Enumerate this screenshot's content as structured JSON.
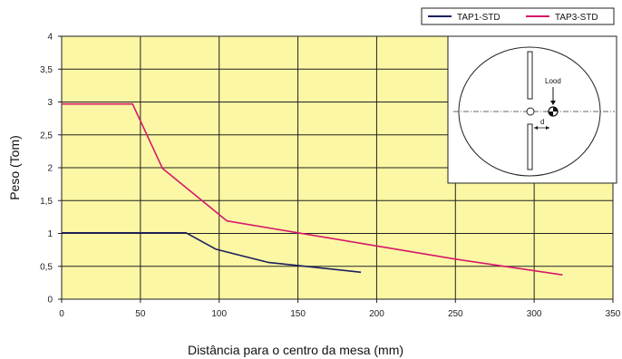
{
  "chart_data": {
    "type": "line",
    "title": "",
    "xlabel": "Distância para o centro da mesa (mm)",
    "ylabel": "Peso (Tom)",
    "xlim": [
      0,
      350
    ],
    "ylim": [
      0,
      4
    ],
    "x_ticks": [
      {
        "value": 0,
        "label": "0"
      },
      {
        "value": 50,
        "label": "50"
      },
      {
        "value": 100,
        "label": "100"
      },
      {
        "value": 150,
        "label": "150"
      },
      {
        "value": 200,
        "label": "200"
      },
      {
        "value": 250,
        "label": "250"
      },
      {
        "value": 300,
        "label": "300"
      },
      {
        "value": 350,
        "label": "350"
      }
    ],
    "y_ticks": [
      {
        "value": 0,
        "label": "0"
      },
      {
        "value": 0.5,
        "label": "0,5"
      },
      {
        "value": 1,
        "label": "1"
      },
      {
        "value": 1.5,
        "label": "1,5"
      },
      {
        "value": 2,
        "label": "2"
      },
      {
        "value": 2.5,
        "label": "2,5"
      },
      {
        "value": 3,
        "label": "3"
      },
      {
        "value": 3.5,
        "label": "3,5"
      },
      {
        "value": 4,
        "label": "4"
      }
    ],
    "grid": true,
    "legend_position": "top-right",
    "plot_background": "#fbf7a4",
    "series": [
      {
        "name": "TAP1-STD",
        "color": "#1d1f5e",
        "points": [
          [
            0,
            1.01
          ],
          [
            79,
            1.01
          ],
          [
            98,
            0.76
          ],
          [
            131,
            0.56
          ],
          [
            155,
            0.5
          ],
          [
            190,
            0.41
          ]
        ]
      },
      {
        "name": "TAP3-STD",
        "color": "#d6186b",
        "points": [
          [
            0,
            2.97
          ],
          [
            45,
            2.97
          ],
          [
            64,
            1.99
          ],
          [
            105,
            1.19
          ],
          [
            150,
            1.01
          ],
          [
            200,
            0.81
          ],
          [
            250,
            0.61
          ],
          [
            318,
            0.37
          ]
        ]
      }
    ],
    "inset": {
      "load_label": "Lood",
      "distance_label": "d"
    }
  }
}
